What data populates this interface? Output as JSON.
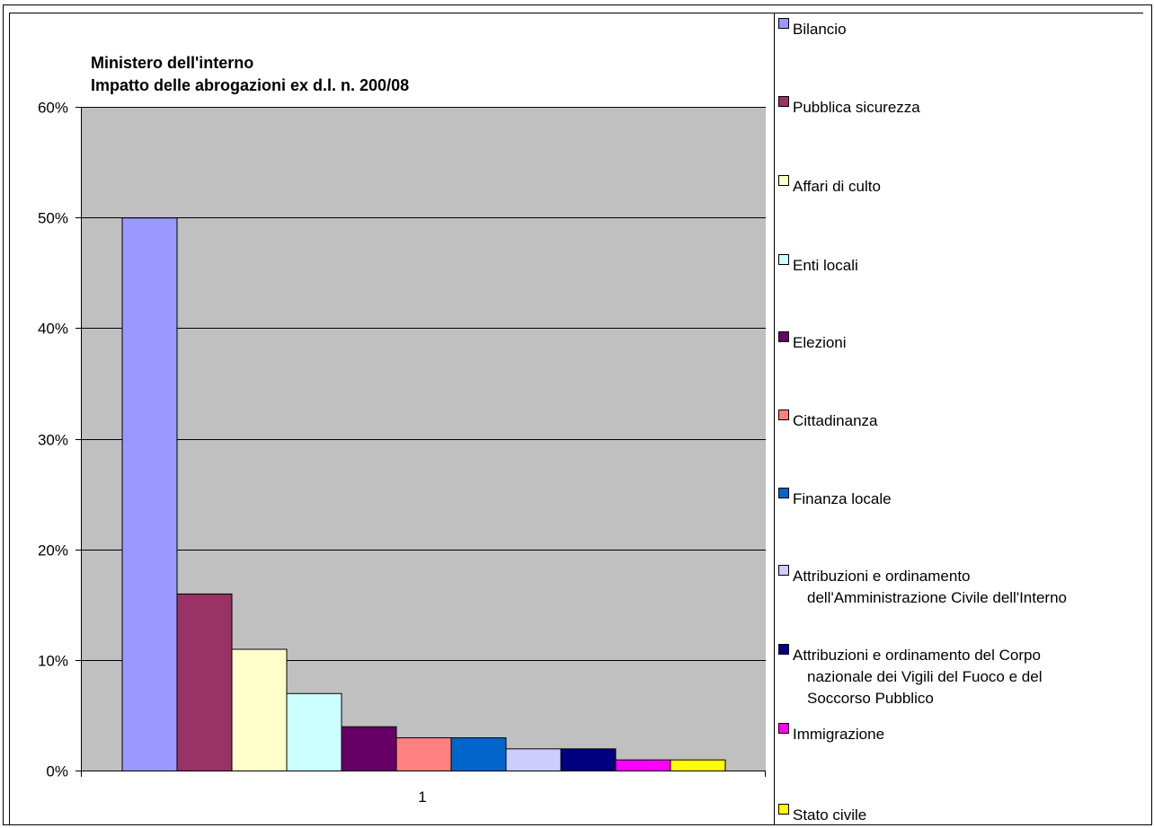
{
  "chart_data": {
    "type": "bar",
    "title_lines": [
      "Ministero dell'interno",
      "Impatto delle abrogazioni ex d.l. n. 200/08"
    ],
    "categories": [
      "1"
    ],
    "ylim": [
      0,
      0.6
    ],
    "y_ticks": [
      {
        "value": 0.0,
        "label": "0%"
      },
      {
        "value": 0.1,
        "label": "10%"
      },
      {
        "value": 0.2,
        "label": "20%"
      },
      {
        "value": 0.3,
        "label": "30%"
      },
      {
        "value": 0.4,
        "label": "40%"
      },
      {
        "value": 0.5,
        "label": "50%"
      },
      {
        "value": 0.6,
        "label": "60%"
      }
    ],
    "grid": true,
    "legend_position": "right",
    "plot_background": "#c0c0c0",
    "series": [
      {
        "name": "Bilancio",
        "legend_lines": [
          "Bilancio"
        ],
        "values": [
          0.5
        ],
        "color": "#9999ff"
      },
      {
        "name": "Pubblica sicurezza",
        "legend_lines": [
          "Pubblica sicurezza"
        ],
        "values": [
          0.16
        ],
        "color": "#993366"
      },
      {
        "name": "Affari di culto",
        "legend_lines": [
          "Affari di culto"
        ],
        "values": [
          0.11
        ],
        "color": "#ffffcc"
      },
      {
        "name": "Enti locali",
        "legend_lines": [
          "Enti locali"
        ],
        "values": [
          0.07
        ],
        "color": "#ccffff"
      },
      {
        "name": "Elezioni",
        "legend_lines": [
          "Elezioni"
        ],
        "values": [
          0.04
        ],
        "color": "#660066"
      },
      {
        "name": "Cittadinanza",
        "legend_lines": [
          "Cittadinanza"
        ],
        "values": [
          0.03
        ],
        "color": "#ff8080"
      },
      {
        "name": "Finanza locale",
        "legend_lines": [
          "Finanza locale"
        ],
        "values": [
          0.03
        ],
        "color": "#0066cc"
      },
      {
        "name": "Attribuzioni e ordinamento dell'Amministrazione Civile dell'Interno",
        "legend_lines": [
          "Attribuzioni e ordinamento",
          "dell'Amministrazione Civile dell'Interno"
        ],
        "values": [
          0.02
        ],
        "color": "#ccccff"
      },
      {
        "name": "Attribuzioni e ordinamento del Corpo nazionale dei Vigili del Fuoco e del Soccorso Pubblico",
        "legend_lines": [
          "Attribuzioni e ordinamento del Corpo",
          "nazionale dei Vigili del Fuoco e del",
          "Soccorso Pubblico"
        ],
        "values": [
          0.02
        ],
        "color": "#000080"
      },
      {
        "name": "Immigrazione",
        "legend_lines": [
          "Immigrazione"
        ],
        "values": [
          0.01
        ],
        "color": "#ff00ff"
      },
      {
        "name": "Stato civile",
        "legend_lines": [
          "Stato civile"
        ],
        "values": [
          0.01
        ],
        "color": "#ffff00"
      }
    ]
  }
}
